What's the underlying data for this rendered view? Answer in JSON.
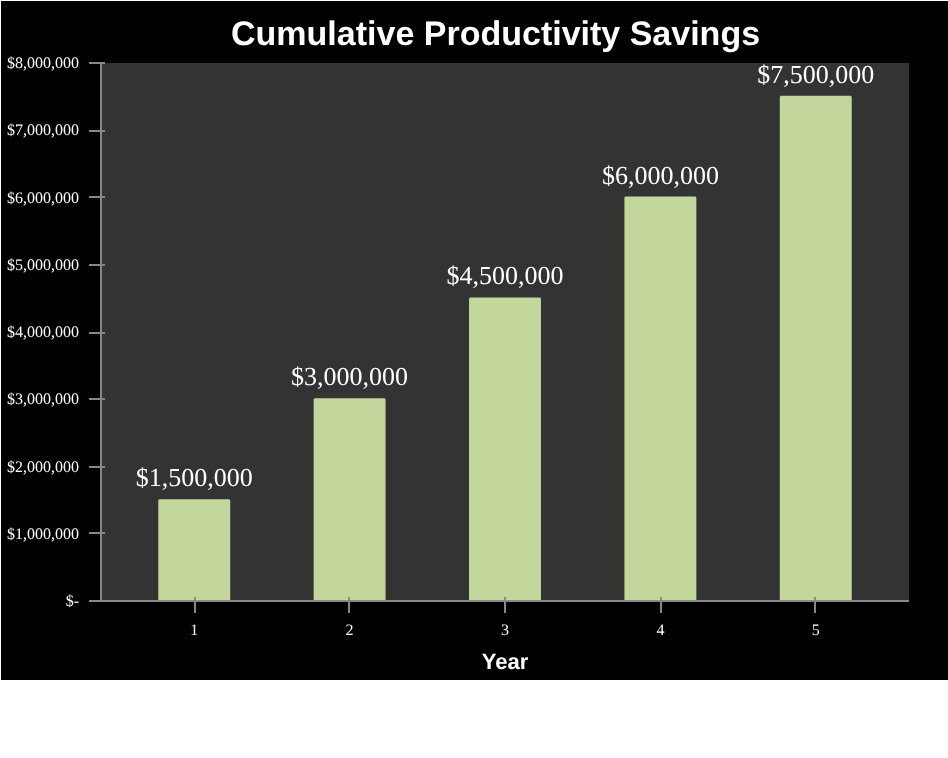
{
  "chart_data": {
    "type": "bar",
    "title": "Cumulative  Productivity  Savings",
    "xlabel": "Year",
    "categories": [
      "1",
      "2",
      "3",
      "4",
      "5"
    ],
    "values": [
      1500000,
      3000000,
      4500000,
      6000000,
      7500000
    ],
    "value_labels": [
      "$1,500,000",
      "$3,000,000",
      "$4,500,000",
      "$6,000,000",
      "$7,500,000"
    ],
    "color": "#c3d69b",
    "ylim": [
      0,
      8000000
    ],
    "yticks": [
      {
        "value": 0,
        "label": "$-"
      },
      {
        "value": 1000000,
        "label": "$1,000,000"
      },
      {
        "value": 2000000,
        "label": "$2,000,000"
      },
      {
        "value": 3000000,
        "label": "$3,000,000"
      },
      {
        "value": 4000000,
        "label": "$4,000,000"
      },
      {
        "value": 5000000,
        "label": "$5,000,000"
      },
      {
        "value": 6000000,
        "label": "$6,000,000"
      },
      {
        "value": 7000000,
        "label": "$7,000,000"
      },
      {
        "value": 8000000,
        "label": "$8,000,000"
      }
    ],
    "grid": false
  }
}
